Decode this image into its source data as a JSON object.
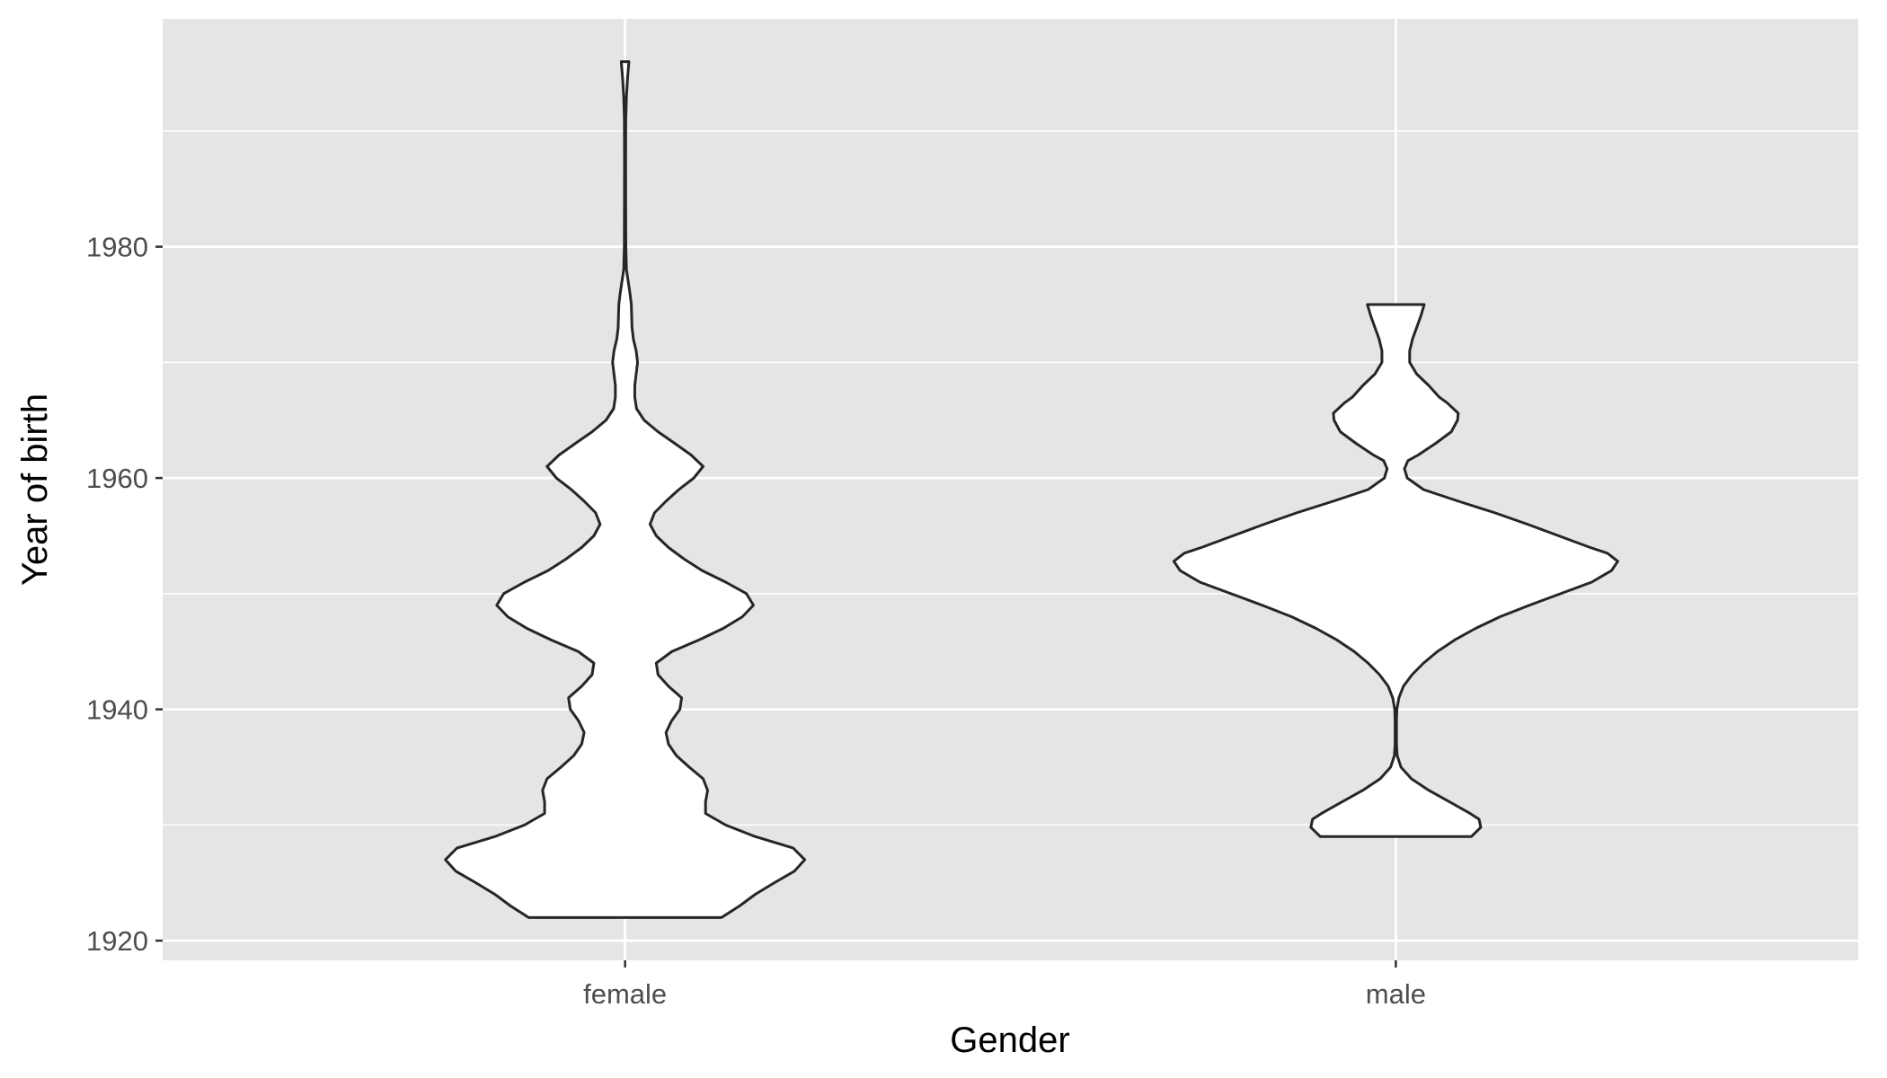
{
  "chart_data": {
    "type": "violin",
    "title": "",
    "xlabel": "Gender",
    "ylabel": "Year of birth",
    "categories": [
      "female",
      "male"
    ],
    "ylim": [
      1918.3,
      1999.7
    ],
    "yticks": [
      1920,
      1940,
      1960,
      1980
    ],
    "grid": true,
    "legend": "none",
    "colors": {
      "panel": "#e5e5e5",
      "grid": "#ffffff",
      "outline": "#262626",
      "fill": "#ffffff",
      "tick_label": "#4d4d4d",
      "axis_title": "#000000",
      "tick": "#333333"
    },
    "violins": [
      {
        "category": "female",
        "y_min": 1922,
        "y_max": 1996,
        "density": [
          [
            1922,
            0.278
          ],
          [
            1923,
            0.33
          ],
          [
            1924,
            0.375
          ],
          [
            1925,
            0.43
          ],
          [
            1926,
            0.488
          ],
          [
            1927,
            0.518
          ],
          [
            1928,
            0.485
          ],
          [
            1929,
            0.375
          ],
          [
            1930,
            0.29
          ],
          [
            1931,
            0.232
          ],
          [
            1932,
            0.232
          ],
          [
            1933,
            0.238
          ],
          [
            1934,
            0.225
          ],
          [
            1935,
            0.185
          ],
          [
            1936,
            0.148
          ],
          [
            1937,
            0.125
          ],
          [
            1938,
            0.118
          ],
          [
            1939,
            0.134
          ],
          [
            1940,
            0.158
          ],
          [
            1941,
            0.163
          ],
          [
            1942,
            0.125
          ],
          [
            1943,
            0.095
          ],
          [
            1944,
            0.09
          ],
          [
            1945,
            0.135
          ],
          [
            1946,
            0.213
          ],
          [
            1947,
            0.283
          ],
          [
            1948,
            0.338
          ],
          [
            1949,
            0.37
          ],
          [
            1950,
            0.35
          ],
          [
            1951,
            0.29
          ],
          [
            1952,
            0.222
          ],
          [
            1953,
            0.17
          ],
          [
            1954,
            0.125
          ],
          [
            1955,
            0.09
          ],
          [
            1956,
            0.072
          ],
          [
            1957,
            0.085
          ],
          [
            1958,
            0.118
          ],
          [
            1959,
            0.155
          ],
          [
            1960,
            0.198
          ],
          [
            1961,
            0.225
          ],
          [
            1962,
            0.19
          ],
          [
            1963,
            0.143
          ],
          [
            1964,
            0.095
          ],
          [
            1965,
            0.055
          ],
          [
            1966,
            0.033
          ],
          [
            1967,
            0.028
          ],
          [
            1968,
            0.028
          ],
          [
            1969,
            0.032
          ],
          [
            1970,
            0.036
          ],
          [
            1971,
            0.032
          ],
          [
            1972,
            0.024
          ],
          [
            1973,
            0.02
          ],
          [
            1974,
            0.019
          ],
          [
            1975,
            0.018
          ],
          [
            1976,
            0.014
          ],
          [
            1977,
            0.009
          ],
          [
            1978,
            0.004
          ],
          [
            1980,
            0.0022
          ],
          [
            1984,
            0.0018
          ],
          [
            1988,
            0.0017
          ],
          [
            1991,
            0.002
          ],
          [
            1993,
            0.004
          ],
          [
            1994.5,
            0.007
          ],
          [
            1996,
            0.011
          ]
        ]
      },
      {
        "category": "male",
        "y_min": 1929,
        "y_max": 1975,
        "density": [
          [
            1929,
            0.218
          ],
          [
            1929.8,
            0.245
          ],
          [
            1930.5,
            0.24
          ],
          [
            1931,
            0.214
          ],
          [
            1932,
            0.155
          ],
          [
            1933,
            0.095
          ],
          [
            1934,
            0.045
          ],
          [
            1935,
            0.015
          ],
          [
            1936,
            0.004
          ],
          [
            1937,
            0.002
          ],
          [
            1938,
            0.002
          ],
          [
            1939,
            0.002
          ],
          [
            1940,
            0.003
          ],
          [
            1941,
            0.009
          ],
          [
            1942,
            0.022
          ],
          [
            1943,
            0.047
          ],
          [
            1944,
            0.08
          ],
          [
            1945,
            0.12
          ],
          [
            1946,
            0.17
          ],
          [
            1947,
            0.23
          ],
          [
            1948,
            0.3
          ],
          [
            1949,
            0.385
          ],
          [
            1950,
            0.475
          ],
          [
            1951,
            0.565
          ],
          [
            1952,
            0.622
          ],
          [
            1952.8,
            0.64
          ],
          [
            1953.5,
            0.61
          ],
          [
            1954,
            0.56
          ],
          [
            1955,
            0.47
          ],
          [
            1956,
            0.38
          ],
          [
            1957,
            0.285
          ],
          [
            1958,
            0.18
          ],
          [
            1959,
            0.08
          ],
          [
            1960,
            0.033
          ],
          [
            1960.8,
            0.025
          ],
          [
            1961.5,
            0.035
          ],
          [
            1962,
            0.065
          ],
          [
            1963,
            0.115
          ],
          [
            1964,
            0.16
          ],
          [
            1965,
            0.178
          ],
          [
            1965.6,
            0.18
          ],
          [
            1966.5,
            0.148
          ],
          [
            1967,
            0.125
          ],
          [
            1968,
            0.095
          ],
          [
            1969,
            0.06
          ],
          [
            1970,
            0.04
          ],
          [
            1971,
            0.04
          ],
          [
            1972,
            0.048
          ],
          [
            1973,
            0.06
          ],
          [
            1974,
            0.072
          ],
          [
            1975,
            0.082
          ]
        ]
      }
    ]
  }
}
